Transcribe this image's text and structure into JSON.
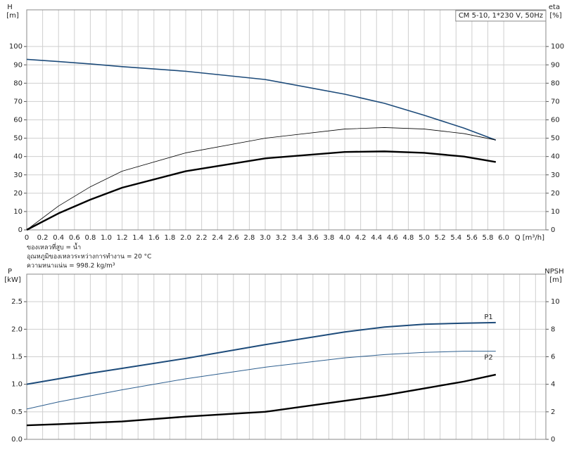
{
  "chart_data": [
    {
      "type": "line",
      "title": "CM 5-10, 1*230 V, 50Hz",
      "y_label": "H",
      "y_unit": "[m]",
      "y2_label": "eta",
      "y2_unit": "[%]",
      "x_label": "Q [m³/h]",
      "notes": [
        "ของเหลวที่สูบ = น้ำ",
        "อุณหภูมิของเหลวระหว่างการทำงาน = 20 °C",
        "ความหนาแน่น = 998.2 kg/m³"
      ],
      "x": [
        0,
        0.4,
        0.8,
        1.2,
        2,
        3,
        4,
        4.5,
        5,
        5.5,
        5.9
      ],
      "series": [
        {
          "color": "#1d4b7a",
          "values": [
            93,
            91.8,
            90.5,
            89,
            86.5,
            82,
            74,
            69,
            62.5,
            55.5,
            49
          ]
        },
        {
          "color": "#000000",
          "axis": "y2",
          "values": [
            0,
            13,
            23.5,
            32,
            42,
            50,
            55,
            55.8,
            55,
            52.5,
            49
          ]
        },
        {
          "color": "#000000",
          "axis": "y2",
          "values": [
            0,
            9,
            16.5,
            23,
            32,
            39,
            42.5,
            42.8,
            42,
            40,
            37
          ]
        }
      ],
      "xlim": [
        0,
        6.53
      ],
      "xticks": [
        0,
        0.2,
        0.4,
        0.6,
        0.8,
        {
          "value": 1,
          "label": "1.0"
        },
        1.2,
        1.4,
        1.6,
        1.8,
        {
          "value": 2,
          "label": "2.0"
        },
        2.2,
        2.4,
        2.6,
        2.8,
        {
          "value": 3,
          "label": "3.0"
        },
        3.2,
        3.4,
        3.6,
        3.8,
        {
          "value": 4,
          "label": "4.0"
        },
        4.2,
        4.4,
        4.6,
        4.8,
        {
          "value": 5,
          "label": "5.0"
        },
        5.2,
        5.4,
        5.6,
        5.8,
        {
          "value": 6,
          "label": "6.0"
        }
      ],
      "ylim": [
        0,
        120
      ],
      "yticks": [
        0,
        10,
        20,
        30,
        40,
        50,
        60,
        70,
        80,
        90,
        100
      ],
      "y2lim": [
        0,
        120
      ],
      "y2ticks": [
        0,
        10,
        20,
        30,
        40,
        50,
        60,
        70,
        80,
        90,
        100
      ],
      "grid": true
    },
    {
      "type": "line",
      "y_label": "P",
      "y_unit": "[kW]",
      "y2_label": "NPSH",
      "y2_unit": "[m]",
      "x": [
        0,
        0.4,
        0.8,
        1.2,
        2,
        3,
        4,
        4.5,
        5,
        5.5,
        5.9
      ],
      "series": [
        {
          "name": "P1",
          "color": "#1d4b7a",
          "values": [
            1.0,
            1.1,
            1.2,
            1.29,
            1.47,
            1.72,
            1.95,
            2.04,
            2.09,
            2.11,
            2.12
          ]
        },
        {
          "name": "P2",
          "color": "#2e5f8f",
          "values": [
            0.55,
            0.68,
            0.79,
            0.9,
            1.1,
            1.31,
            1.48,
            1.54,
            1.58,
            1.6,
            1.6
          ]
        },
        {
          "color": "#000000",
          "axis": "y2",
          "values": [
            1.02,
            1.1,
            1.2,
            1.3,
            1.65,
            2.0,
            2.8,
            3.2,
            3.7,
            4.2,
            4.7
          ]
        }
      ],
      "xlim": [
        0,
        6.53
      ],
      "xticks": [
        0,
        0.2,
        0.4,
        0.6,
        0.8,
        1,
        1.2,
        1.4,
        1.6,
        1.8,
        2,
        2.2,
        2.4,
        2.6,
        2.8,
        3,
        3.2,
        3.4,
        3.6,
        3.8,
        4,
        4.2,
        4.4,
        4.6,
        4.8,
        5,
        5.2,
        5.4,
        5.6,
        5.8,
        6,
        6.2,
        6.4
      ],
      "ylim": [
        0,
        3.0
      ],
      "yticks": [
        {
          "value": 0,
          "label": "0.0"
        },
        0.5,
        {
          "value": 1,
          "label": "1.0"
        },
        1.5,
        {
          "value": 2,
          "label": "2.0"
        },
        2.5
      ],
      "y2lim": [
        0,
        12
      ],
      "y2ticks": [
        0,
        2,
        4,
        6,
        8,
        10
      ],
      "grid": true
    }
  ]
}
